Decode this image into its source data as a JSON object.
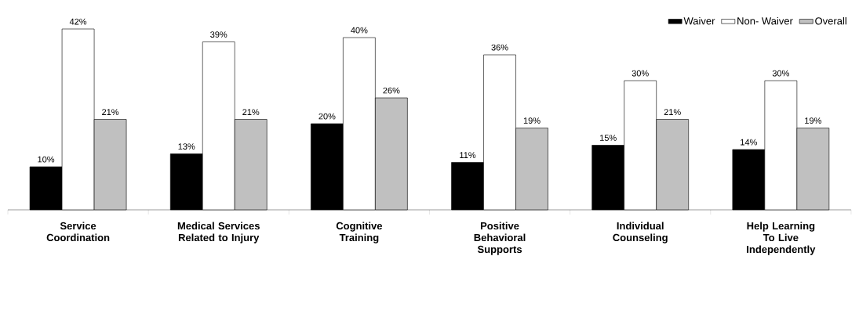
{
  "chart_data": {
    "type": "bar",
    "categories": [
      "Service Coordination",
      "Medical Services Related to Injury",
      "Cognitive Training",
      "Positive Behavioral Supports",
      "Individual Counseling",
      "Help Learning To Live Independently"
    ],
    "series": [
      {
        "name": "Waiver",
        "color": "#000000",
        "values": [
          10,
          13,
          20,
          11,
          15,
          14
        ],
        "value_labels": [
          "10%",
          "13%",
          "20%",
          "11%",
          "15%",
          "14%"
        ]
      },
      {
        "name": "Non- Waiver",
        "color": "#ffffff",
        "values": [
          42,
          39,
          40,
          36,
          30,
          30
        ],
        "value_labels": [
          "42%",
          "39%",
          "40%",
          "36%",
          "30%",
          "30%"
        ]
      },
      {
        "name": "Overall",
        "color": "#c0c0c0",
        "values": [
          21,
          21,
          26,
          19,
          21,
          19
        ],
        "value_labels": [
          "21%",
          "21%",
          "26%",
          "19%",
          "21%",
          "19%"
        ]
      }
    ],
    "tick_labels": "x",
    "legend": "top right"
  }
}
